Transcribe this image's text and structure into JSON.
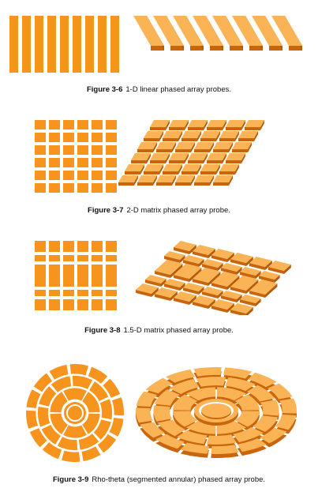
{
  "colors": {
    "face": "#f7941d",
    "top": "#fbb455",
    "side": "#c9660d",
    "gap": "#ffffff"
  },
  "figures": [
    {
      "number": "Figure 3-6",
      "text": "1-D linear phased array probes."
    },
    {
      "number": "Figure 3-7",
      "text": "2-D matrix phased array probe."
    },
    {
      "number": "Figure 3-8",
      "text": "1.5-D matrix phased array probe."
    },
    {
      "number": "Figure 3-9",
      "text": "Rho-theta (segmented annular) phased array probe."
    }
  ]
}
